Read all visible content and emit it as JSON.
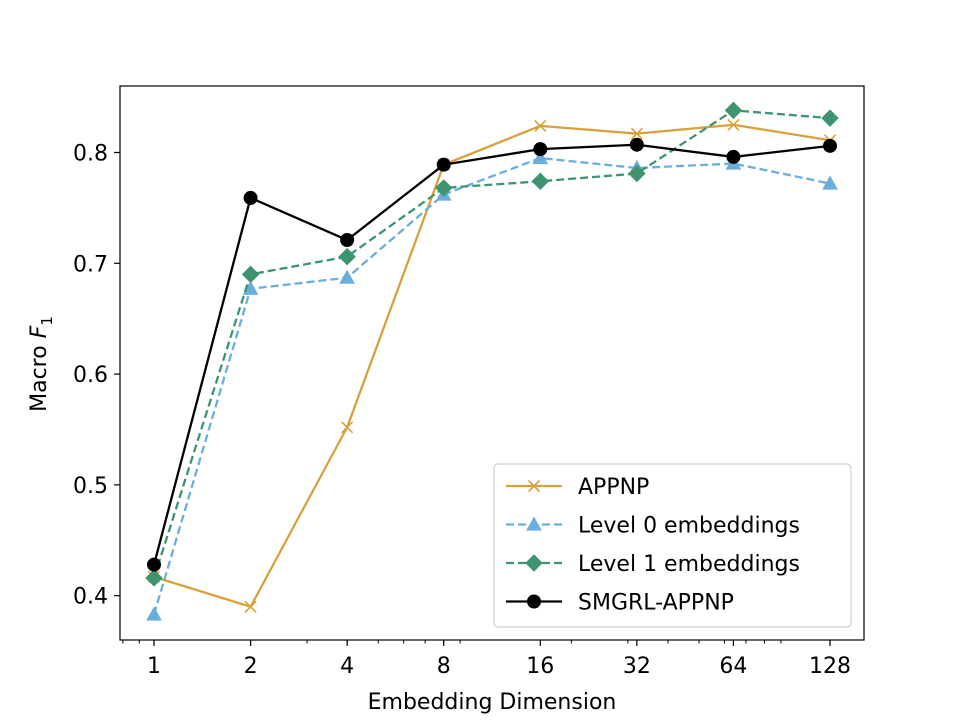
{
  "chart_data": {
    "type": "line",
    "title": "",
    "xscale": "log2",
    "x": [
      1,
      2,
      4,
      8,
      16,
      32,
      64,
      128
    ],
    "xtick_labels": [
      "1",
      "2",
      "4",
      "8",
      "16",
      "32",
      "64",
      "128"
    ],
    "xlabel": "Embedding Dimension",
    "ylabel_main": "Macro ",
    "ylabel_var": "F",
    "ylabel_sub": "1",
    "ylim": [
      0.36,
      0.86
    ],
    "yticks": [
      0.4,
      0.5,
      0.6,
      0.7,
      0.8
    ],
    "ytick_labels": [
      "0.4",
      "0.5",
      "0.6",
      "0.7",
      "0.8"
    ],
    "legend_position": "lower-right",
    "grid": false,
    "series": [
      {
        "name": "APPNP",
        "color": "#d8a13b",
        "linestyle": "solid",
        "marker": "x",
        "values": [
          0.417,
          0.39,
          0.552,
          0.789,
          0.824,
          0.817,
          0.825,
          0.811
        ]
      },
      {
        "name": "Level 0 embeddings",
        "color": "#6aaedd",
        "linestyle": "dashed",
        "marker": "triangle",
        "values": [
          0.383,
          0.677,
          0.687,
          0.762,
          0.795,
          0.786,
          0.79,
          0.772
        ]
      },
      {
        "name": "Level 1 embeddings",
        "color": "#3f9470",
        "linestyle": "dashed",
        "marker": "diamond",
        "values": [
          0.416,
          0.69,
          0.706,
          0.768,
          0.774,
          0.781,
          0.838,
          0.831
        ]
      },
      {
        "name": "SMGRL-APPNP",
        "color": "#000000",
        "linestyle": "solid",
        "marker": "circle",
        "values": [
          0.428,
          0.759,
          0.721,
          0.789,
          0.803,
          0.807,
          0.796,
          0.806
        ]
      }
    ]
  }
}
